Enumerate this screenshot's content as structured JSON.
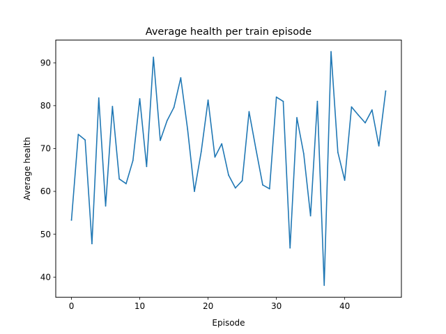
{
  "chart_data": {
    "type": "line",
    "title": "Average health per train episode",
    "xlabel": "Episode",
    "ylabel": "Average health",
    "xlim": [
      -2.3,
      48.3
    ],
    "ylim": [
      35.3,
      95.3
    ],
    "x_ticks": [
      0,
      10,
      20,
      30,
      40
    ],
    "y_ticks": [
      40,
      50,
      60,
      70,
      80,
      90
    ],
    "grid": false,
    "legend": "none",
    "series": [
      {
        "color": "#1f77b4",
        "x": [
          0,
          1,
          2,
          3,
          4,
          5,
          6,
          7,
          8,
          9,
          10,
          11,
          12,
          13,
          14,
          15,
          16,
          17,
          18,
          19,
          20,
          21,
          22,
          23,
          24,
          25,
          26,
          27,
          28,
          29,
          30,
          31,
          32,
          33,
          34,
          35,
          36,
          37,
          38,
          39,
          40,
          41,
          42,
          43,
          44,
          45,
          46
        ],
        "values": [
          53.3,
          73.3,
          72.0,
          47.8,
          81.8,
          56.6,
          79.8,
          62.9,
          61.8,
          67.2,
          81.6,
          65.8,
          91.3,
          71.9,
          76.5,
          79.6,
          86.5,
          74.5,
          60.0,
          69.3,
          81.3,
          68.0,
          71.1,
          63.8,
          60.8,
          62.5,
          78.6,
          69.9,
          61.5,
          60.6,
          82.0,
          81.0,
          46.8,
          77.2,
          68.8,
          54.3,
          81.0,
          38.1,
          92.6,
          69.1,
          62.6,
          79.7,
          77.8,
          76.0,
          79.0,
          70.6,
          83.4
        ]
      }
    ]
  }
}
